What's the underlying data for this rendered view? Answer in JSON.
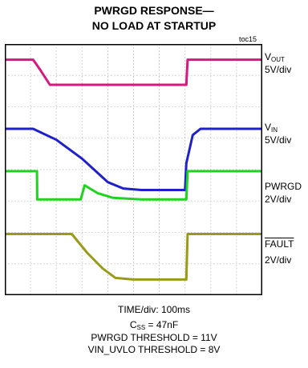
{
  "title_line1": "PWRGD RESPONSE—",
  "title_line2": "NO LOAD AT STARTUP",
  "figure_id": "toc15",
  "colors": {
    "vout": "#d6197e",
    "vin": "#1f1fcc",
    "pwrgd": "#1ed41e",
    "fault": "#9a9a1a",
    "grid": "#bfbfbf",
    "frame": "#000000"
  },
  "channel_labels": {
    "vout": {
      "main": "V",
      "sub": "OUT",
      "scale": "5V/div"
    },
    "vin": {
      "main": "V",
      "sub": "IN",
      "scale": "5V/div"
    },
    "pwrgd": {
      "main": "PWRGD",
      "scale": "2V/div"
    },
    "fault": {
      "main": "FAULT",
      "scale": "2V/div"
    }
  },
  "caption": {
    "time_div": "TIME/div: 100ms",
    "css_main": "C",
    "css_sub": "SS",
    "css_value": " = 47nF",
    "pwrgd_threshold": "PWRGD THRESHOLD = 11V",
    "uvlo_threshold": "VIN_UVLO THRESHOLD = 8V"
  },
  "chart_data": {
    "type": "line",
    "x_unit": "div",
    "x_divisions": 10,
    "y_divisions": 8,
    "grid": true,
    "series": [
      {
        "name": "VOUT",
        "x": [
          0,
          1.1,
          1.4,
          1.75,
          2.0,
          7.05,
          7.1,
          10
        ],
        "y": [
          7.5,
          7.5,
          7.15,
          6.7,
          6.7,
          6.7,
          7.5,
          7.5
        ]
      },
      {
        "name": "VIN",
        "x": [
          0,
          1.1,
          2.0,
          3.0,
          4.0,
          4.6,
          5.3,
          7.0,
          7.05,
          7.3,
          7.6,
          10
        ],
        "y": [
          5.3,
          5.3,
          4.95,
          4.35,
          3.6,
          3.4,
          3.35,
          3.35,
          4.2,
          5.1,
          5.3,
          5.3
        ]
      },
      {
        "name": "PWRGD",
        "x": [
          0,
          1.25,
          1.26,
          2.95,
          3.1,
          3.6,
          4.2,
          5.3,
          7.05,
          7.1,
          10
        ],
        "y": [
          3.95,
          3.95,
          3.05,
          3.05,
          3.5,
          3.25,
          3.1,
          3.05,
          3.05,
          3.95,
          3.95
        ]
      },
      {
        "name": "FAULT",
        "x": [
          0,
          2.6,
          3.2,
          3.8,
          4.3,
          5.0,
          7.05,
          7.1,
          10
        ],
        "y": [
          1.95,
          1.95,
          1.35,
          0.85,
          0.55,
          0.5,
          0.5,
          1.95,
          1.95
        ]
      }
    ]
  }
}
